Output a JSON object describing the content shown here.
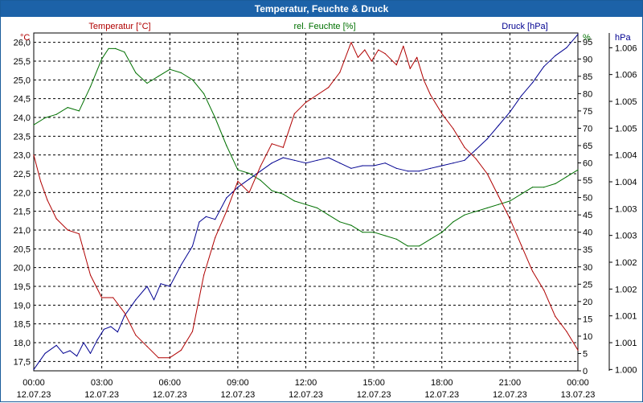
{
  "chart_data": {
    "type": "line",
    "title": "Temperatur, Feuchte & Druck",
    "x_ticks": [
      {
        "time": "00:00",
        "date": "12.07.23"
      },
      {
        "time": "03:00",
        "date": "12.07.23"
      },
      {
        "time": "06:00",
        "date": "12.07.23"
      },
      {
        "time": "09:00",
        "date": "12.07.23"
      },
      {
        "time": "12:00",
        "date": "12.07.23"
      },
      {
        "time": "15:00",
        "date": "12.07.23"
      },
      {
        "time": "18:00",
        "date": "12.07.23"
      },
      {
        "time": "21:00",
        "date": "12.07.23"
      },
      {
        "time": "00:00",
        "date": "13.07.23"
      }
    ],
    "x_range_hours": [
      0,
      24
    ],
    "grid": true,
    "temperature": {
      "name": "Temperatur [°C]",
      "unit": "°C",
      "color": "#b00000",
      "ylim": [
        17.25,
        26.25
      ],
      "ticks": [
        "17,5",
        "18,0",
        "18,5",
        "19,0",
        "19,5",
        "20,0",
        "20,5",
        "21,0",
        "21,5",
        "22,0",
        "22,5",
        "23,0",
        "23,5",
        "24,0",
        "24,5",
        "25,0",
        "25,5",
        "26,0"
      ],
      "x": [
        0,
        0.3,
        0.6,
        1,
        1.5,
        2,
        2.5,
        3,
        3.5,
        4,
        4.5,
        5,
        5.5,
        6,
        6.5,
        7,
        7.5,
        8,
        8.5,
        9,
        9.5,
        10,
        10.5,
        11,
        11.5,
        12,
        12.5,
        13,
        13.5,
        14,
        14.3,
        14.6,
        14.9,
        15.2,
        15.5,
        16,
        16.3,
        16.6,
        16.9,
        17.2,
        17.5,
        18,
        18.5,
        19,
        19.5,
        20,
        20.5,
        21,
        21.5,
        22,
        22.5,
        23,
        23.5,
        24
      ],
      "values": [
        23.0,
        22.3,
        21.8,
        21.3,
        21.0,
        20.9,
        19.8,
        19.2,
        19.2,
        18.8,
        18.2,
        17.9,
        17.6,
        17.6,
        17.8,
        18.3,
        19.8,
        20.8,
        21.5,
        22.3,
        22.0,
        22.7,
        23.3,
        23.2,
        24.1,
        24.4,
        24.6,
        24.8,
        25.2,
        26.0,
        25.6,
        25.8,
        25.5,
        25.8,
        25.7,
        25.4,
        25.9,
        25.3,
        25.6,
        25.0,
        24.6,
        24.1,
        23.7,
        23.2,
        22.9,
        22.5,
        21.9,
        21.3,
        20.6,
        19.9,
        19.4,
        18.7,
        18.3,
        17.8
      ]
    },
    "humidity": {
      "name": "rel. Feuchte [%]",
      "unit": "%",
      "color": "#007000",
      "ylim": [
        0,
        97.5
      ],
      "ticks": [
        "0",
        "5",
        "10",
        "15",
        "20",
        "25",
        "30",
        "35",
        "40",
        "45",
        "50",
        "55",
        "60",
        "65",
        "70",
        "75",
        "80",
        "85",
        "90",
        "95"
      ],
      "x": [
        0,
        0.5,
        1,
        1.5,
        2,
        2.5,
        3,
        3.3,
        3.6,
        4,
        4.5,
        5,
        5.5,
        6,
        6.5,
        7,
        7.5,
        8,
        8.5,
        9,
        9.5,
        10,
        10.5,
        11,
        11.5,
        12,
        12.5,
        13,
        13.5,
        14,
        14.5,
        15,
        15.5,
        16,
        16.5,
        17,
        17.5,
        18,
        18.5,
        19,
        19.5,
        20,
        20.5,
        21,
        21.5,
        22,
        22.5,
        23,
        23.5,
        24
      ],
      "values": [
        71,
        73,
        74,
        76,
        75,
        82,
        90,
        93,
        93,
        92,
        86,
        83,
        85,
        87,
        86,
        84,
        80,
        73,
        65,
        58,
        57,
        55,
        52,
        51,
        49,
        48,
        47,
        45,
        43,
        42,
        40,
        40,
        39,
        38,
        36,
        36,
        38,
        40,
        43,
        45,
        46,
        47,
        48,
        49,
        51,
        53,
        53,
        54,
        56,
        58
      ]
    },
    "pressure": {
      "name": "Druck [hPa]",
      "unit": "hPa",
      "color": "#000090",
      "ylim": [
        999.975,
        1006.275
      ],
      "ticks": [
        "1.000",
        "1.001",
        "1.001",
        "1.002",
        "1.002",
        "1.003",
        "1.003",
        "1.004",
        "1.004",
        "1.005",
        "1.005",
        "1.006",
        "1.006"
      ],
      "x": [
        0,
        0.5,
        1,
        1.3,
        1.6,
        1.9,
        2.2,
        2.5,
        2.8,
        3.1,
        3.4,
        3.7,
        4,
        4.5,
        5,
        5.3,
        5.6,
        6,
        6.5,
        7,
        7.3,
        7.6,
        8,
        8.5,
        9,
        9.5,
        10,
        10.5,
        11,
        11.5,
        12,
        12.5,
        13,
        13.5,
        14,
        14.5,
        15,
        15.5,
        16,
        16.5,
        17,
        17.5,
        18,
        18.5,
        19,
        19.5,
        20,
        20.5,
        21,
        21.5,
        22,
        22.5,
        23,
        23.5,
        24
      ],
      "values": [
        1000.0,
        1000.3,
        1000.45,
        1000.3,
        1000.35,
        1000.25,
        1000.5,
        1000.3,
        1000.55,
        1000.75,
        1000.8,
        1000.7,
        1001.0,
        1001.3,
        1001.55,
        1001.3,
        1001.6,
        1001.55,
        1001.95,
        1002.3,
        1002.75,
        1002.85,
        1002.8,
        1003.2,
        1003.4,
        1003.55,
        1003.7,
        1003.85,
        1003.95,
        1003.9,
        1003.85,
        1003.9,
        1003.95,
        1003.85,
        1003.75,
        1003.8,
        1003.8,
        1003.85,
        1003.75,
        1003.7,
        1003.7,
        1003.75,
        1003.8,
        1003.85,
        1003.9,
        1004.1,
        1004.3,
        1004.55,
        1004.8,
        1005.1,
        1005.35,
        1005.65,
        1005.85,
        1006.0,
        1006.25
      ]
    }
  }
}
